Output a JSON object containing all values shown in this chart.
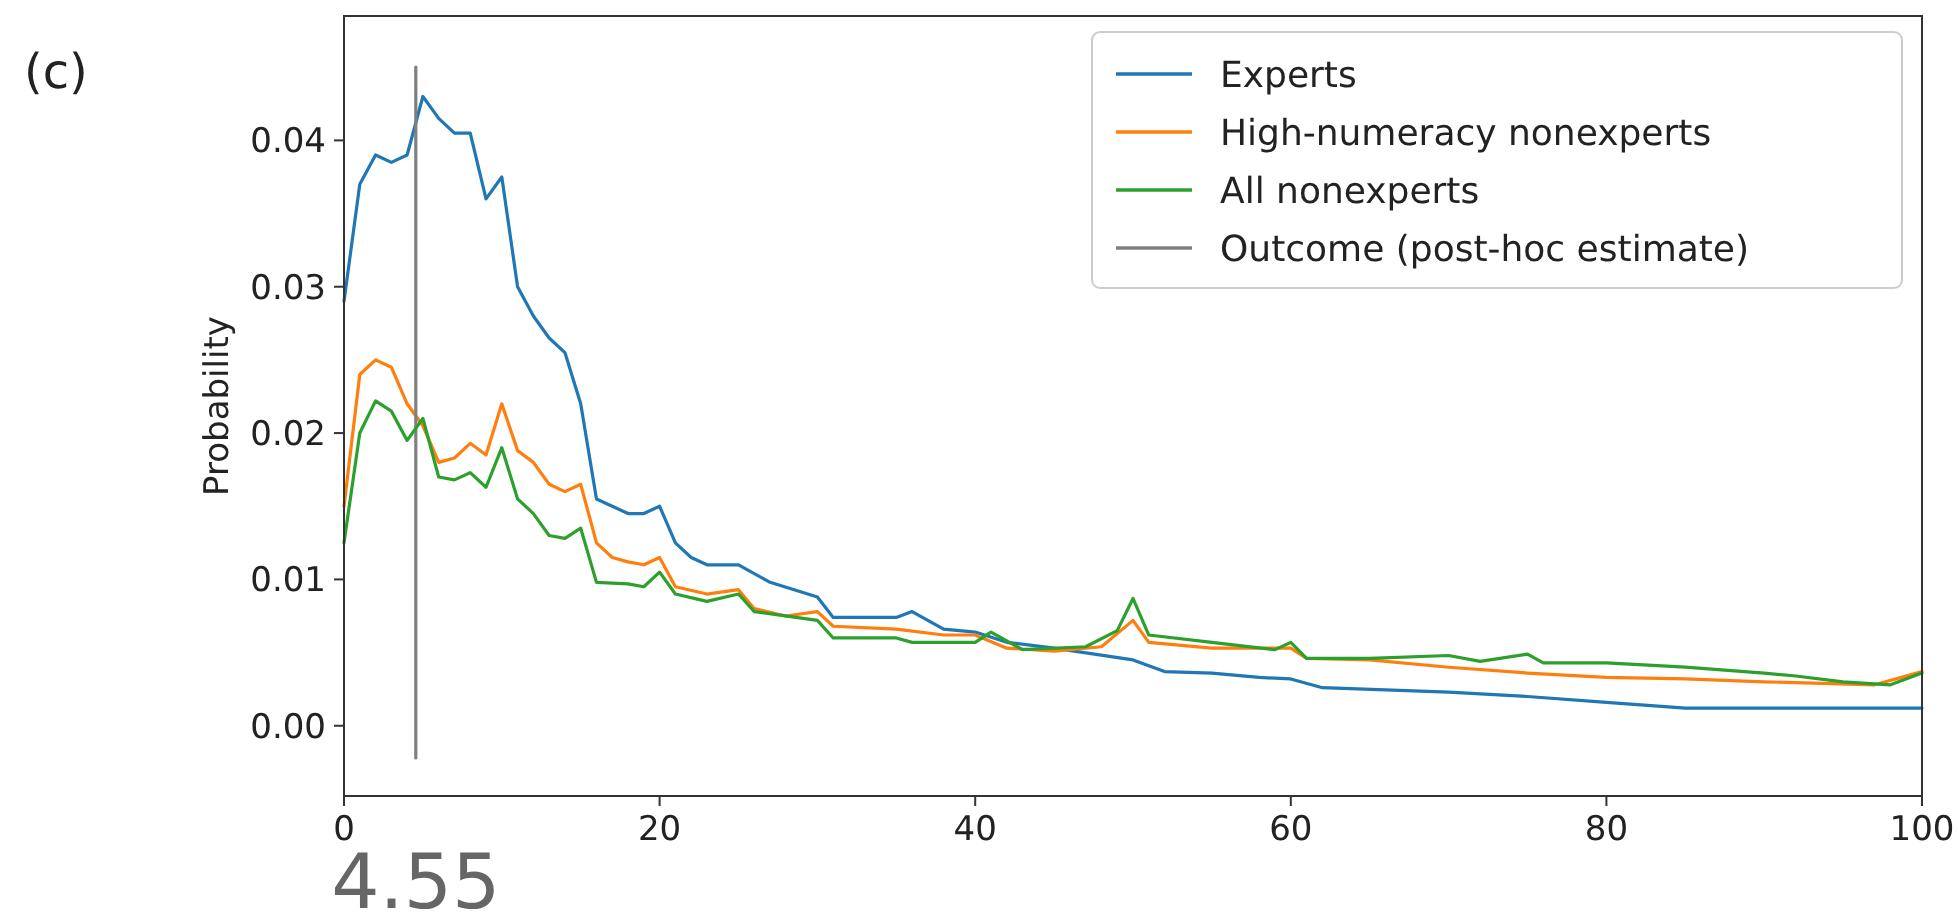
{
  "chart_data": {
    "type": "line",
    "title": "(c)",
    "ylabel": "Probability",
    "annotations": [
      "4.55"
    ],
    "xlim": [
      0,
      100
    ],
    "xticks": [
      0,
      20,
      40,
      60,
      80,
      100
    ],
    "ylim": [
      -0.0048,
      0.0485
    ],
    "yticks": [
      {
        "value": 0,
        "label": "0.00"
      },
      {
        "value": 0.01,
        "label": "0.01"
      },
      {
        "value": 0.02,
        "label": "0.02"
      },
      {
        "value": 0.03,
        "label": "0.03"
      },
      {
        "value": 0.04,
        "label": "0.04"
      }
    ],
    "grid": false,
    "legend": "top right",
    "line_style": "solid",
    "marker": "none",
    "series": [
      {
        "name": "Experts",
        "color": "#1f77b4",
        "x": [
          0,
          1,
          2,
          3,
          4,
          5,
          6,
          7,
          8,
          9,
          10,
          11,
          12,
          13,
          14,
          15,
          16,
          17,
          18,
          19,
          20,
          21,
          22,
          23,
          25,
          27,
          30,
          31,
          35,
          36,
          38,
          40,
          42,
          45,
          50,
          52,
          55,
          58,
          60,
          62,
          70,
          75,
          80,
          85,
          100
        ],
        "values": [
          0.029,
          0.037,
          0.039,
          0.0385,
          0.039,
          0.043,
          0.0415,
          0.0405,
          0.0405,
          0.036,
          0.0375,
          0.03,
          0.028,
          0.0265,
          0.0255,
          0.022,
          0.0155,
          0.015,
          0.0145,
          0.0145,
          0.015,
          0.0125,
          0.0115,
          0.011,
          0.011,
          0.0098,
          0.0088,
          0.0074,
          0.0074,
          0.0078,
          0.0066,
          0.0064,
          0.0057,
          0.0053,
          0.0045,
          0.0037,
          0.0036,
          0.0033,
          0.0032,
          0.0026,
          0.0023,
          0.002,
          0.0016,
          0.0012,
          0.0012
        ]
      },
      {
        "name": "High-numeracy nonexperts",
        "color": "#ff7f0e",
        "x": [
          0,
          1,
          2,
          3,
          4,
          5,
          6,
          7,
          8,
          9,
          10,
          11,
          12,
          13,
          14,
          15,
          16,
          17,
          18,
          19,
          20,
          21,
          23,
          25,
          26,
          28,
          30,
          31,
          35,
          38,
          40,
          42,
          45,
          48,
          50,
          51,
          55,
          60,
          61,
          65,
          70,
          75,
          80,
          85,
          90,
          97,
          100
        ],
        "values": [
          0.015,
          0.024,
          0.025,
          0.0245,
          0.022,
          0.0205,
          0.018,
          0.0183,
          0.0193,
          0.0185,
          0.022,
          0.0188,
          0.018,
          0.0165,
          0.016,
          0.0165,
          0.0125,
          0.0115,
          0.0112,
          0.011,
          0.0115,
          0.0095,
          0.009,
          0.0093,
          0.008,
          0.0075,
          0.0078,
          0.0068,
          0.0066,
          0.0062,
          0.0062,
          0.0053,
          0.0051,
          0.0054,
          0.0072,
          0.0057,
          0.0053,
          0.0053,
          0.0046,
          0.0045,
          0.004,
          0.0036,
          0.0033,
          0.0032,
          0.003,
          0.0028,
          0.0037
        ]
      },
      {
        "name": "Outcome (post-hoc estimate)",
        "color": "#7f7f7f",
        "x": [
          4.55,
          4.55
        ],
        "values": [
          -0.0022,
          0.045
        ]
      },
      {
        "name": "All nonexperts",
        "color": "#2ca02c",
        "x": [
          0,
          1,
          2,
          3,
          4,
          5,
          6,
          7,
          8,
          9,
          10,
          11,
          12,
          13,
          14,
          15,
          16,
          18,
          19,
          20,
          21,
          23,
          25,
          26,
          30,
          31,
          35,
          36,
          40,
          41,
          43,
          47,
          49,
          50,
          51,
          55,
          59,
          60,
          61,
          65,
          70,
          72,
          75,
          76,
          80,
          85,
          90,
          92,
          95,
          98,
          100
        ],
        "values": [
          0.0125,
          0.02,
          0.0222,
          0.0215,
          0.0195,
          0.021,
          0.017,
          0.0168,
          0.0173,
          0.0163,
          0.019,
          0.0155,
          0.0145,
          0.013,
          0.0128,
          0.0135,
          0.0098,
          0.0097,
          0.0095,
          0.0105,
          0.009,
          0.0085,
          0.009,
          0.0078,
          0.0072,
          0.006,
          0.006,
          0.0057,
          0.0057,
          0.0064,
          0.0052,
          0.0054,
          0.0065,
          0.0087,
          0.0062,
          0.0057,
          0.0052,
          0.0057,
          0.0046,
          0.0046,
          0.0048,
          0.0044,
          0.0049,
          0.0043,
          0.0043,
          0.004,
          0.0036,
          0.0034,
          0.003,
          0.0028,
          0.0036
        ]
      }
    ]
  }
}
